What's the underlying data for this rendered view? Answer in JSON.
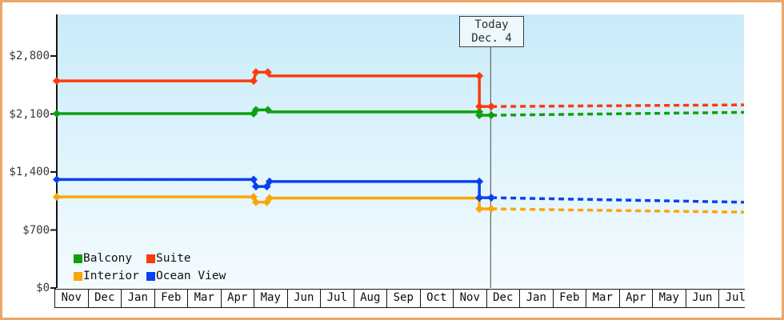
{
  "frame": {
    "border_color": "#EDA768",
    "background": "#FFFFFF"
  },
  "legend": {
    "rows": [
      [
        "Balcony",
        "Suite"
      ],
      [
        "Interior",
        "Ocean View"
      ]
    ]
  },
  "chart_data": {
    "type": "line",
    "description": "Cruise cabin price history with dashed future projection after today marker",
    "x_unit": "month_index (0 = first Nov at left edge, 41.5px per month)",
    "x_axis": {
      "tick_labels": [
        "Nov",
        "Dec",
        "Jan",
        "Feb",
        "Mar",
        "Apr",
        "May",
        "Jun",
        "Jul",
        "Aug",
        "Sep",
        "Oct",
        "Nov",
        "Dec",
        "Jan",
        "Feb",
        "Mar",
        "Apr",
        "May",
        "Jun",
        "Jul"
      ]
    },
    "y_axis": {
      "tick_labels": [
        "$0",
        "$700",
        "$1,400",
        "$2,100",
        "$2,800"
      ],
      "tick_values": [
        0,
        700,
        1400,
        2100,
        2800
      ],
      "range": [
        0,
        2800
      ],
      "grid": false
    },
    "today": {
      "label": "Today",
      "date": "Dec. 4",
      "month_index": 13.14
    },
    "colors": {
      "axis": "#141414",
      "today_line": "#4a4a4a",
      "plot_bg_top": "#C9EBF9",
      "plot_bg_bottom": "#F4FBFF"
    },
    "legend_position": "bottom-left inside plot",
    "series": [
      {
        "name": "Interior",
        "color": "#FCA507",
        "solid": [
          [
            0.07,
            1100
          ],
          [
            6.0,
            1100
          ],
          [
            6.07,
            1035
          ],
          [
            6.4,
            1035
          ],
          [
            6.48,
            1085
          ],
          [
            12.8,
            1085
          ],
          [
            12.8,
            955
          ],
          [
            13.16,
            955
          ]
        ],
        "markers": [
          [
            0.07,
            1100
          ],
          [
            6.0,
            1100
          ],
          [
            6.07,
            1035
          ],
          [
            6.4,
            1035
          ],
          [
            6.48,
            1085
          ],
          [
            12.8,
            1085
          ],
          [
            12.8,
            955
          ],
          [
            13.16,
            955
          ]
        ],
        "projection": [
          [
            13.16,
            955
          ],
          [
            20.77,
            915
          ]
        ]
      },
      {
        "name": "Ocean View",
        "color": "#0841F0",
        "solid": [
          [
            0.07,
            1310
          ],
          [
            6.0,
            1310
          ],
          [
            6.07,
            1225
          ],
          [
            6.4,
            1225
          ],
          [
            6.48,
            1285
          ],
          [
            12.8,
            1285
          ],
          [
            12.8,
            1090
          ],
          [
            13.16,
            1090
          ]
        ],
        "markers": [
          [
            0.07,
            1310
          ],
          [
            6.0,
            1310
          ],
          [
            6.07,
            1225
          ],
          [
            6.4,
            1225
          ],
          [
            6.48,
            1285
          ],
          [
            12.8,
            1285
          ],
          [
            12.8,
            1090
          ],
          [
            13.16,
            1090
          ]
        ],
        "projection": [
          [
            13.16,
            1090
          ],
          [
            20.77,
            1035
          ]
        ]
      },
      {
        "name": "Balcony",
        "color": "#0EA00E",
        "solid": [
          [
            0.07,
            2105
          ],
          [
            6.0,
            2105
          ],
          [
            6.07,
            2150
          ],
          [
            6.43,
            2150
          ],
          [
            6.48,
            2125
          ],
          [
            12.8,
            2125
          ],
          [
            12.8,
            2085
          ],
          [
            13.16,
            2085
          ]
        ],
        "markers": [
          [
            0.07,
            2105
          ],
          [
            6.0,
            2105
          ],
          [
            6.07,
            2150
          ],
          [
            6.43,
            2150
          ],
          [
            12.8,
            2125
          ],
          [
            12.8,
            2085
          ],
          [
            13.16,
            2085
          ]
        ],
        "projection": [
          [
            13.16,
            2085
          ],
          [
            20.77,
            2120
          ]
        ]
      },
      {
        "name": "Suite",
        "color": "#FA3C0C",
        "solid": [
          [
            0.07,
            2500
          ],
          [
            6.0,
            2500
          ],
          [
            6.07,
            2605
          ],
          [
            6.43,
            2605
          ],
          [
            6.48,
            2560
          ],
          [
            12.8,
            2560
          ],
          [
            12.8,
            2190
          ],
          [
            13.16,
            2190
          ]
        ],
        "markers": [
          [
            0.07,
            2500
          ],
          [
            6.0,
            2500
          ],
          [
            6.07,
            2605
          ],
          [
            6.43,
            2605
          ],
          [
            12.8,
            2560
          ],
          [
            12.8,
            2190
          ],
          [
            13.16,
            2190
          ]
        ],
        "projection": [
          [
            13.16,
            2190
          ],
          [
            20.77,
            2210
          ]
        ]
      }
    ]
  }
}
